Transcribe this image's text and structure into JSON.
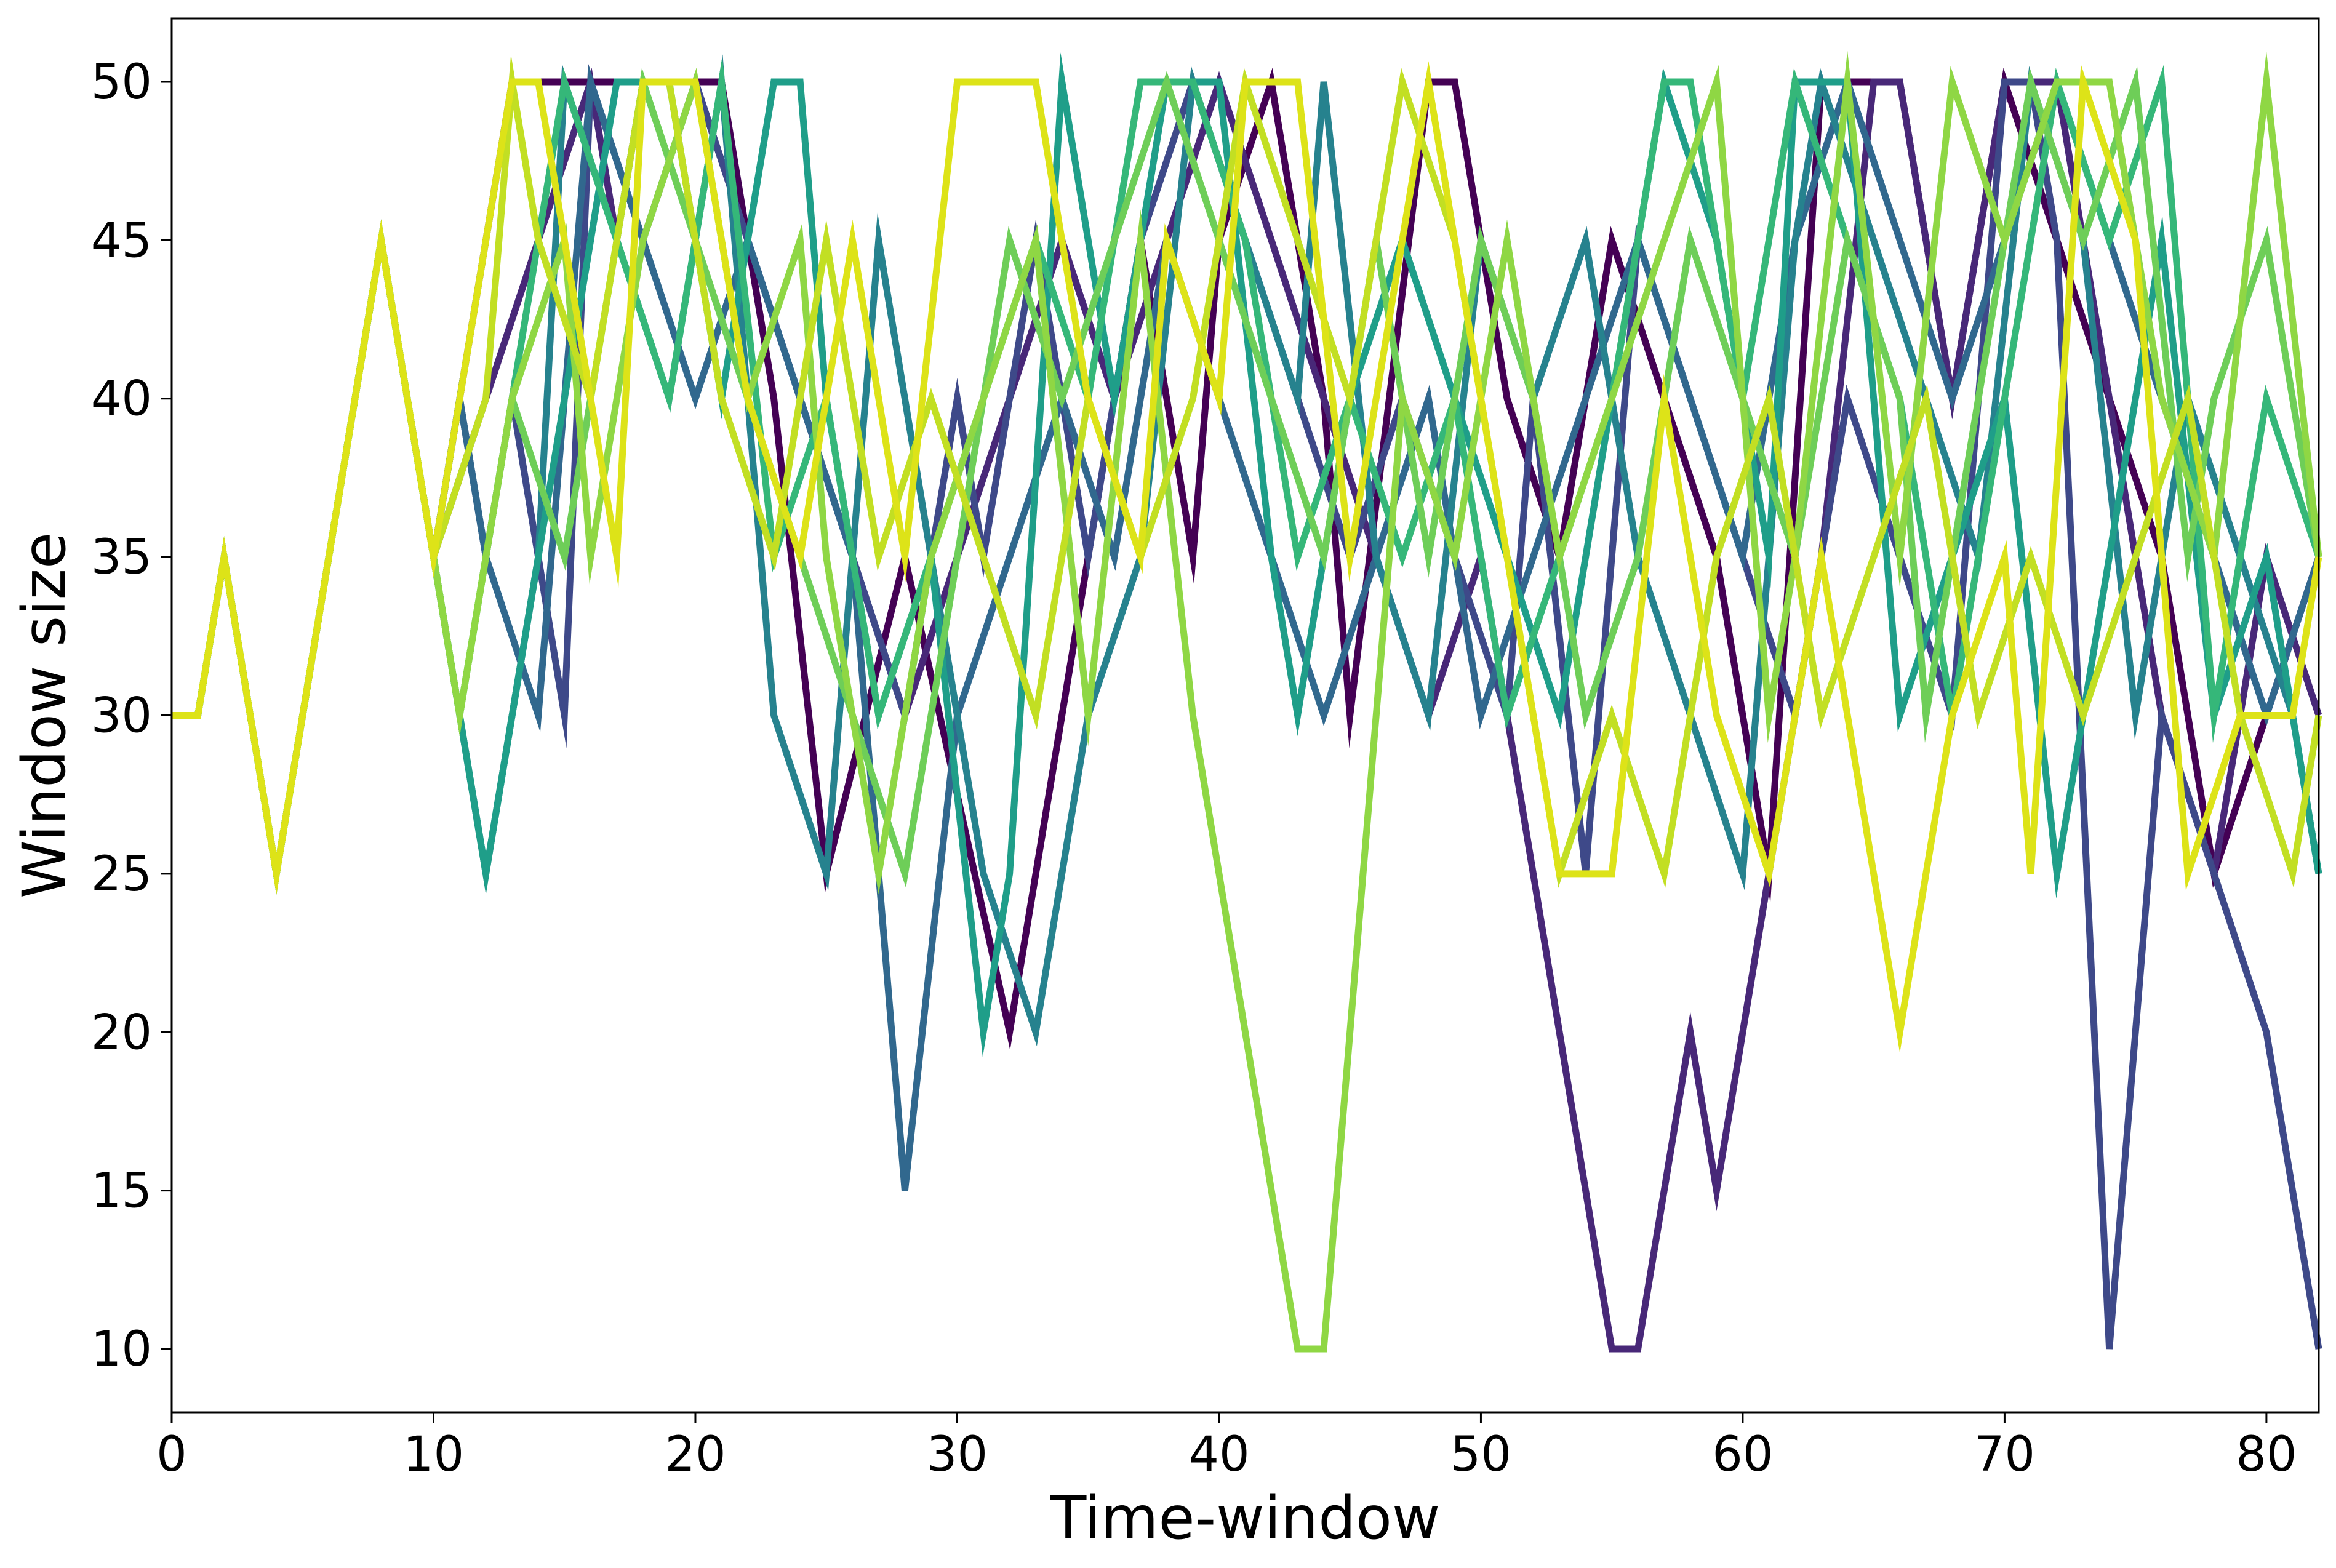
{
  "chart_data": {
    "type": "line",
    "title": "",
    "xlabel": "Time-window",
    "ylabel": "Window size",
    "xlim": [
      0,
      82
    ],
    "ylim": [
      8,
      52
    ],
    "xticks": [
      0,
      10,
      20,
      30,
      40,
      50,
      60,
      70,
      80
    ],
    "yticks": [
      10,
      15,
      20,
      25,
      30,
      35,
      40,
      45,
      50
    ],
    "grid": false,
    "legend": "none",
    "common_prefix": {
      "x": [
        0,
        1,
        2,
        4,
        8,
        10
      ],
      "y": [
        30,
        30,
        35,
        25,
        45,
        35
      ]
    },
    "series": [
      {
        "color": "#440154",
        "x": [
          10,
          13,
          14,
          15,
          21,
          23,
          25,
          28,
          32,
          34,
          37,
          39,
          40,
          42,
          44,
          45,
          48,
          49,
          51,
          53,
          55,
          57,
          59,
          61,
          63,
          64,
          66,
          68,
          70,
          72,
          74,
          76,
          78,
          80,
          82
        ],
        "y": [
          35,
          50,
          50,
          50,
          50,
          40,
          25,
          35,
          20,
          30,
          45,
          35,
          45,
          50,
          40,
          30,
          50,
          50,
          40,
          35,
          45,
          40,
          35,
          25,
          50,
          50,
          50,
          40,
          50,
          45,
          40,
          35,
          25,
          30,
          35
        ]
      },
      {
        "color": "#482878",
        "x": [
          10,
          12,
          14,
          16,
          17,
          18,
          20,
          22,
          24,
          26,
          28,
          30,
          32,
          34,
          36,
          38,
          40,
          42,
          44,
          46,
          48,
          50,
          52,
          55,
          56,
          58,
          59,
          61,
          63,
          65,
          66,
          68,
          70,
          72,
          74,
          76,
          78,
          80,
          82
        ],
        "y": [
          35,
          40,
          45,
          50,
          45,
          50,
          50,
          45,
          40,
          35,
          30,
          35,
          40,
          45,
          40,
          45,
          50,
          45,
          40,
          35,
          30,
          35,
          25,
          10,
          10,
          20,
          15,
          25,
          35,
          50,
          50,
          40,
          50,
          50,
          40,
          30,
          25,
          35,
          30
        ]
      },
      {
        "color": "#3e4989",
        "x": [
          10,
          11,
          12,
          13,
          15,
          16,
          18,
          20,
          22,
          24,
          26,
          28,
          30,
          31,
          33,
          35,
          37,
          39,
          41,
          43,
          45,
          47,
          49,
          51,
          52,
          54,
          56,
          58,
          60,
          62,
          64,
          66,
          68,
          70,
          71,
          72,
          74,
          76,
          78,
          80,
          82
        ],
        "y": [
          35,
          40,
          35,
          40,
          30,
          50,
          45,
          50,
          45,
          40,
          35,
          30,
          40,
          35,
          45,
          35,
          45,
          50,
          45,
          40,
          35,
          40,
          35,
          30,
          40,
          25,
          45,
          40,
          35,
          30,
          40,
          35,
          30,
          50,
          50,
          45,
          10,
          30,
          25,
          20,
          10
        ]
      },
      {
        "color": "#31688e",
        "x": [
          10,
          11,
          12,
          14,
          16,
          18,
          20,
          22,
          24,
          26,
          28,
          30,
          32,
          34,
          36,
          38,
          40,
          42,
          44,
          46,
          48,
          50,
          52,
          54,
          56,
          58,
          60,
          62,
          64,
          66,
          68,
          70,
          72,
          74,
          76,
          78,
          80,
          82
        ],
        "y": [
          35,
          40,
          35,
          30,
          50,
          45,
          40,
          45,
          40,
          35,
          15,
          30,
          35,
          40,
          35,
          45,
          40,
          35,
          30,
          35,
          40,
          30,
          35,
          40,
          45,
          40,
          35,
          45,
          50,
          45,
          40,
          45,
          50,
          45,
          40,
          35,
          30,
          35
        ]
      },
      {
        "color": "#26828e",
        "x": [
          10,
          11,
          12,
          14,
          15,
          17,
          19,
          21,
          23,
          25,
          27,
          29,
          31,
          33,
          35,
          37,
          39,
          41,
          43,
          44,
          46,
          48,
          50,
          52,
          54,
          56,
          58,
          60,
          62,
          63,
          65,
          67,
          69,
          71,
          73,
          75,
          77,
          79,
          81,
          82
        ],
        "y": [
          35,
          30,
          25,
          35,
          50,
          45,
          40,
          50,
          30,
          25,
          45,
          35,
          25,
          20,
          30,
          35,
          50,
          45,
          40,
          50,
          35,
          30,
          45,
          40,
          45,
          35,
          30,
          25,
          45,
          50,
          45,
          40,
          35,
          50,
          45,
          30,
          40,
          35,
          30,
          25
        ]
      },
      {
        "color": "#1f9e89",
        "x": [
          10,
          11,
          12,
          14,
          16,
          17,
          18,
          19,
          21,
          23,
          24,
          25,
          27,
          29,
          31,
          32,
          34,
          36,
          38,
          40,
          42,
          43,
          45,
          47,
          49,
          51,
          53,
          55,
          57,
          59,
          61,
          62,
          64,
          65,
          66,
          68,
          70,
          72,
          74,
          76,
          78,
          80,
          82
        ],
        "y": [
          35,
          30,
          25,
          35,
          45,
          50,
          50,
          50,
          40,
          50,
          50,
          40,
          30,
          35,
          20,
          25,
          50,
          40,
          50,
          50,
          35,
          30,
          40,
          45,
          40,
          35,
          30,
          40,
          50,
          45,
          35,
          50,
          50,
          40,
          30,
          35,
          40,
          25,
          35,
          45,
          30,
          35,
          25
        ]
      },
      {
        "color": "#35b779",
        "x": [
          10,
          11,
          13,
          15,
          17,
          19,
          21,
          23,
          25,
          27,
          29,
          31,
          33,
          35,
          37,
          39,
          41,
          43,
          45,
          47,
          49,
          51,
          53,
          55,
          57,
          58,
          60,
          62,
          64,
          66,
          68,
          70,
          72,
          74,
          76,
          78,
          80,
          82
        ],
        "y": [
          35,
          30,
          40,
          50,
          45,
          40,
          50,
          35,
          40,
          30,
          35,
          40,
          45,
          40,
          50,
          50,
          45,
          35,
          40,
          35,
          40,
          30,
          35,
          40,
          50,
          50,
          40,
          50,
          45,
          40,
          30,
          40,
          50,
          45,
          50,
          30,
          40,
          35
        ]
      },
      {
        "color": "#6ece58",
        "x": [
          10,
          11,
          13,
          15,
          16,
          18,
          20,
          22,
          24,
          26,
          28,
          30,
          32,
          34,
          36,
          38,
          40,
          42,
          44,
          46,
          48,
          50,
          52,
          54,
          56,
          58,
          60,
          62,
          64,
          66,
          67,
          69,
          71,
          73,
          75,
          77,
          78,
          80,
          82
        ],
        "y": [
          35,
          30,
          40,
          35,
          40,
          50,
          45,
          40,
          35,
          30,
          25,
          35,
          45,
          40,
          45,
          50,
          45,
          40,
          35,
          45,
          35,
          45,
          40,
          30,
          35,
          45,
          40,
          35,
          45,
          40,
          30,
          40,
          50,
          45,
          50,
          35,
          40,
          45,
          35
        ]
      },
      {
        "color": "#8fd744",
        "x": [
          10,
          11,
          13,
          15,
          16,
          18,
          20,
          22,
          24,
          25,
          27,
          29,
          31,
          33,
          35,
          37,
          39,
          43,
          44,
          45,
          47,
          49,
          51,
          53,
          55,
          57,
          59,
          61,
          62,
          64,
          66,
          68,
          70,
          72,
          74,
          76,
          78,
          80,
          82
        ],
        "y": [
          35,
          30,
          40,
          45,
          35,
          45,
          50,
          40,
          45,
          35,
          25,
          35,
          40,
          45,
          30,
          45,
          30,
          10,
          10,
          20,
          40,
          35,
          45,
          35,
          40,
          45,
          50,
          30,
          35,
          50,
          35,
          50,
          45,
          50,
          50,
          40,
          35,
          50,
          35
        ]
      },
      {
        "color": "#c2df23",
        "x": [
          10,
          12,
          13,
          14,
          16,
          18,
          19,
          21,
          23,
          25,
          27,
          29,
          31,
          33,
          35,
          37,
          39,
          41,
          43,
          45,
          47,
          49,
          51,
          53,
          55,
          57,
          59,
          61,
          63,
          65,
          67,
          69,
          71,
          73,
          75,
          77,
          79,
          81,
          82
        ],
        "y": [
          35,
          40,
          50,
          45,
          40,
          50,
          50,
          40,
          35,
          45,
          35,
          40,
          35,
          30,
          40,
          35,
          40,
          50,
          45,
          40,
          50,
          45,
          35,
          25,
          30,
          25,
          35,
          40,
          30,
          35,
          40,
          30,
          35,
          30,
          35,
          40,
          30,
          25,
          30
        ]
      },
      {
        "color": "#dde318",
        "x": [
          10,
          12,
          13,
          14,
          15,
          16,
          17,
          18,
          20,
          22,
          24,
          26,
          28,
          30,
          32,
          33,
          35,
          37,
          38,
          40,
          41,
          43,
          45,
          46,
          48,
          49,
          51,
          53,
          55,
          57,
          59,
          61,
          63,
          66,
          68,
          70,
          71,
          73,
          75,
          76,
          77,
          79,
          81,
          82
        ],
        "y": [
          35,
          45,
          50,
          50,
          45,
          40,
          35,
          50,
          50,
          40,
          35,
          45,
          35,
          50,
          50,
          50,
          40,
          35,
          45,
          40,
          50,
          50,
          35,
          40,
          50,
          45,
          35,
          25,
          25,
          40,
          30,
          25,
          35,
          20,
          30,
          35,
          25,
          50,
          45,
          35,
          25,
          30,
          30,
          35
        ]
      }
    ]
  }
}
